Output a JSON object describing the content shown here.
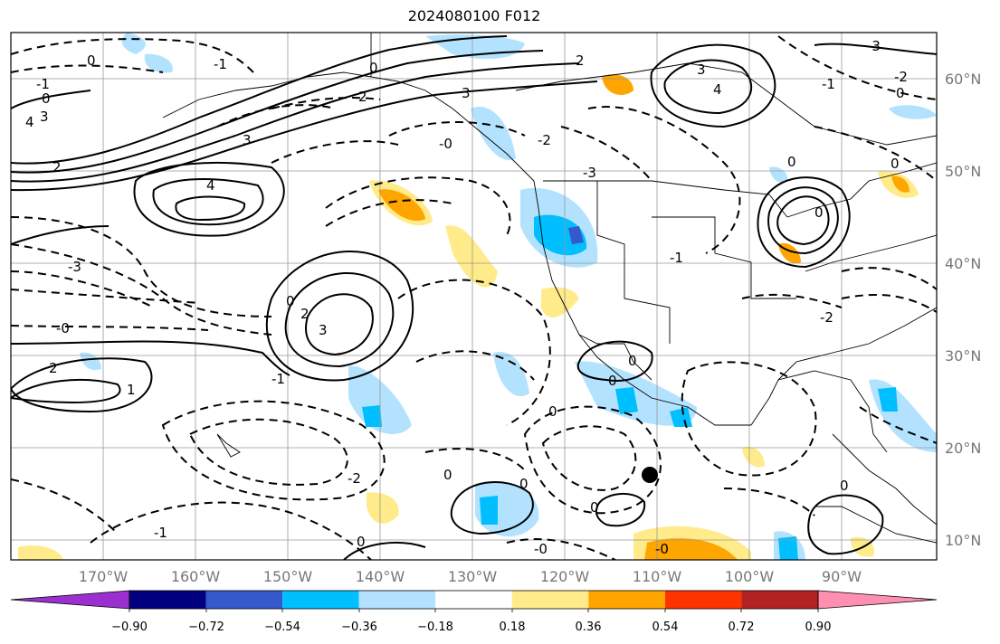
{
  "title": "2024080100 F012",
  "lat_ticks": [
    "60°N",
    "50°N",
    "40°N",
    "30°N",
    "20°N",
    "10°N"
  ],
  "lon_ticks": [
    "170°W",
    "160°W",
    "150°W",
    "140°W",
    "130°W",
    "120°W",
    "110°W",
    "100°W",
    "90°W"
  ],
  "colorbar": {
    "labels": [
      "−0.90",
      "−0.72",
      "−0.54",
      "−0.36",
      "−0.18",
      "0.18",
      "0.36",
      "0.54",
      "0.72",
      "0.90"
    ],
    "colors": [
      "#9b30d0",
      "#000080",
      "#3558cc",
      "#00bfff",
      "#b3e2ff",
      "#ffffff",
      "#ffeb8a",
      "#ffa500",
      "#ff3300",
      "#b22222",
      "#ff8fb0"
    ]
  },
  "contour_labels": [
    "0",
    "2",
    "1",
    "4",
    "3",
    "-1",
    "-2",
    "-3",
    "-4",
    "-0"
  ],
  "colors": {
    "land_border": "#000000",
    "grid": "#999999",
    "marker": "#000000"
  }
}
